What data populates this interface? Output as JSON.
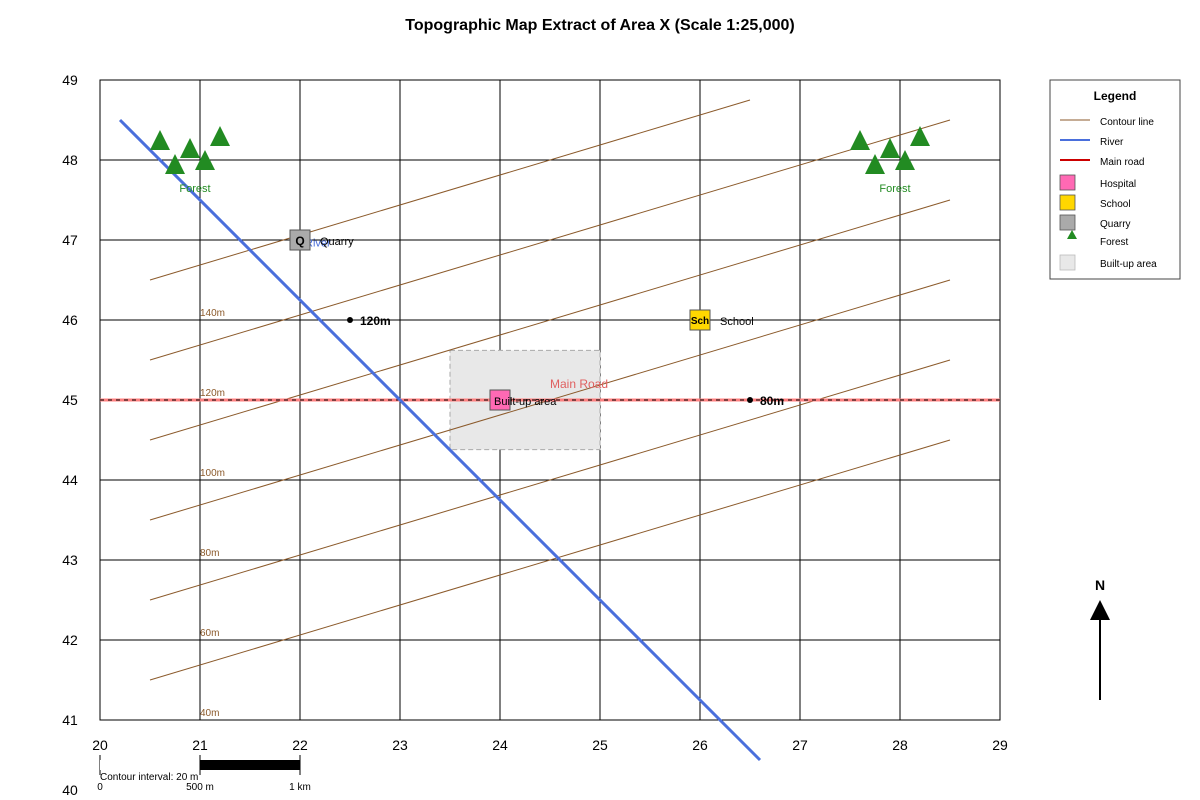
{
  "title": "Topographic Map Extract of Area X (Scale 1:25,000)",
  "grid": {
    "x_ticks": [
      "20",
      "21",
      "22",
      "23",
      "24",
      "25",
      "26",
      "27",
      "28",
      "29"
    ],
    "y_ticks": [
      "49",
      "48",
      "47",
      "46",
      "45",
      "44",
      "43",
      "42",
      "41"
    ],
    "y_extra_tick": "40"
  },
  "contours": [
    {
      "label": "140m",
      "from": [
        20.5,
        46.5
      ],
      "to": [
        26.5,
        48.75
      ]
    },
    {
      "label": "120m",
      "from": [
        20.5,
        45.5
      ],
      "to": [
        28.5,
        48.5
      ]
    },
    {
      "label": "100m",
      "from": [
        20.5,
        44.5
      ],
      "to": [
        28.5,
        47.5
      ]
    },
    {
      "label": "80m",
      "from": [
        20.5,
        43.5
      ],
      "to": [
        28.5,
        46.5
      ]
    },
    {
      "label": "60m",
      "from": [
        20.5,
        42.5
      ],
      "to": [
        28.5,
        45.5
      ]
    },
    {
      "label": "40m",
      "from": [
        20.5,
        41.5
      ],
      "to": [
        28.5,
        44.5
      ]
    }
  ],
  "river": {
    "from": [
      20.2,
      48.5
    ],
    "to": [
      26.6,
      40.5
    ],
    "label": "River",
    "color": "#4a6fdc"
  },
  "road": {
    "label": "Main Road",
    "y": 45,
    "color": "#cc0000"
  },
  "builtup": {
    "label": "Built-up area",
    "x1": 23.5,
    "x2": 25.0,
    "y1": 44.38,
    "y2": 45.62
  },
  "features": {
    "hospital": {
      "x": 24.0,
      "y": 45.0,
      "color": "#ff69b4"
    },
    "school": {
      "x": 26.0,
      "y": 46.0,
      "symbol": "Sch",
      "label": "School",
      "color": "#ffd700"
    },
    "quarry": {
      "x": 22.0,
      "y": 47.0,
      "symbol": "Q",
      "label": "Quarry",
      "color": "#aaaaaa"
    }
  },
  "spot_heights": [
    {
      "x": 22.5,
      "y": 46.0,
      "label": "120m"
    },
    {
      "x": 26.5,
      "y": 45.0,
      "label": "80m"
    }
  ],
  "forests": [
    {
      "label": "Forest",
      "label_at": [
        20.95,
        47.65
      ],
      "trees": [
        [
          20.6,
          48.25
        ],
        [
          20.9,
          48.15
        ],
        [
          21.2,
          48.3
        ],
        [
          20.75,
          47.95
        ],
        [
          21.05,
          48.0
        ]
      ]
    },
    {
      "label": "Forest",
      "label_at": [
        27.95,
        47.65
      ],
      "trees": [
        [
          27.6,
          48.25
        ],
        [
          27.9,
          48.15
        ],
        [
          28.2,
          48.3
        ],
        [
          27.75,
          47.95
        ],
        [
          28.05,
          48.0
        ]
      ]
    }
  ],
  "legend": {
    "title": "Legend",
    "items": {
      "contour": "Contour line",
      "river": "River",
      "road": "Main road",
      "hospital": "Hospital",
      "school": "School",
      "quarry": "Quarry",
      "forest": "Forest",
      "builtup": "Built-up area"
    }
  },
  "north": "N",
  "scale_bar": {
    "zero": "0",
    "mid": "500 m",
    "end": "1 km"
  },
  "contour_interval": "Contour interval: 20 m",
  "colors": {
    "contour": "#8b5a2b",
    "forest": "#228b22",
    "builtup_fill": "#e8e8e8"
  }
}
